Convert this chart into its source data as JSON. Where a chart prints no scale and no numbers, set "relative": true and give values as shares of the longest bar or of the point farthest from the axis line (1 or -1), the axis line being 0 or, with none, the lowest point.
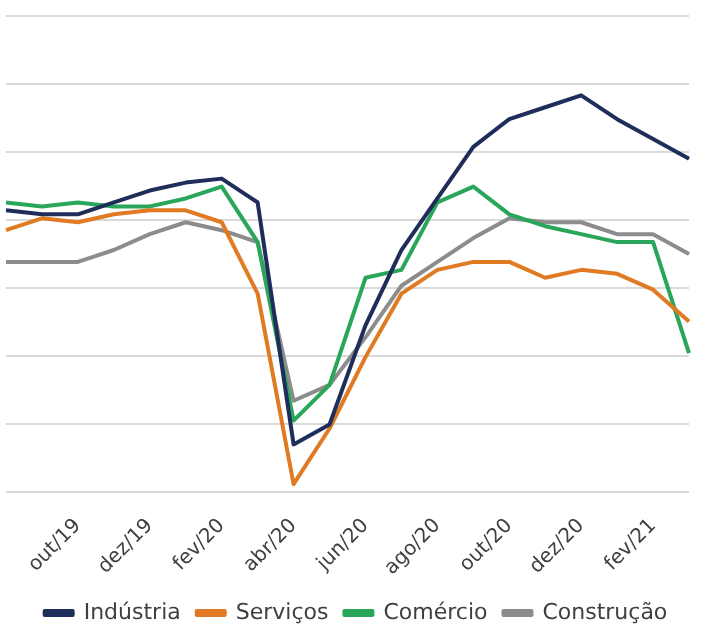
{
  "chart_data": {
    "type": "line",
    "relative": true,
    "grid": "y",
    "legend": "bottom",
    "tick_labels": "x",
    "marker": "none",
    "line_style": "solid",
    "categories": [
      null,
      null,
      "out/19",
      null,
      "dez/19",
      null,
      "fev/20",
      null,
      "abr/20",
      null,
      "jun/20",
      null,
      "ago/20",
      null,
      "out/20",
      null,
      "dez/20",
      null,
      "fev/21",
      null
    ],
    "series": [
      {
        "name": "Indústria",
        "color": "#1f2d5a",
        "values": [
          0.71,
          0.7,
          0.7,
          0.73,
          0.76,
          0.78,
          0.79,
          0.73,
          0.12,
          0.17,
          0.42,
          0.61,
          0.74,
          0.87,
          0.94,
          0.97,
          1,
          0.94,
          0.89,
          0.84
        ]
      },
      {
        "name": "Serviços",
        "color": "#e07b24",
        "values": [
          0.66,
          0.69,
          0.68,
          0.7,
          0.71,
          0.71,
          0.68,
          0.5,
          0.02,
          0.16,
          0.34,
          0.5,
          0.56,
          0.58,
          0.58,
          0.54,
          0.56,
          0.55,
          0.51,
          0.43
        ]
      },
      {
        "name": "Comércio",
        "color": "#2aa65a",
        "values": [
          0.73,
          0.72,
          0.73,
          0.72,
          0.72,
          0.74,
          0.77,
          0.63,
          0.18,
          0.27,
          0.54,
          0.56,
          0.73,
          0.77,
          0.7,
          0.67,
          0.65,
          0.63,
          0.63,
          0.35
        ]
      },
      {
        "name": "Construção",
        "color": "#8c8c8c",
        "values": [
          0.58,
          0.58,
          0.58,
          0.61,
          0.65,
          0.68,
          0.66,
          0.63,
          0.23,
          0.27,
          0.39,
          0.52,
          0.58,
          0.64,
          0.69,
          0.68,
          0.68,
          0.65,
          0.65,
          0.6
        ]
      }
    ]
  }
}
